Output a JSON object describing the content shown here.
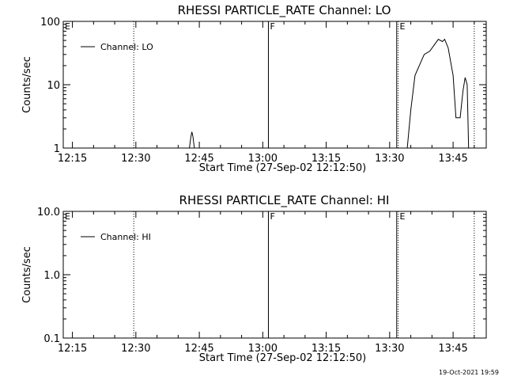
{
  "chart_data": [
    {
      "type": "line",
      "title": "RHESSI PARTICLE_RATE Channel: LO",
      "xlabel": "Start Time (27-Sep-02 12:12:50)",
      "ylabel": "Counts/sec",
      "yscale": "log",
      "ylim": [
        1,
        100
      ],
      "xlim": [
        "12:12:50",
        "13:52:50"
      ],
      "x_ticks": [
        "12:15",
        "12:30",
        "12:45",
        "13:00",
        "13:15",
        "13:30",
        "13:45"
      ],
      "y_ticks": [
        "1",
        "10",
        "100"
      ],
      "legend": {
        "placement": "top-left",
        "entries": [
          "Channel: LO"
        ]
      },
      "markers": [
        {
          "label": "E",
          "time": "12:12:50",
          "style": "solid"
        },
        {
          "label": "",
          "time": "12:29:30",
          "style": "dotted"
        },
        {
          "label": "F",
          "time": "13:01:20",
          "style": "solid"
        },
        {
          "label": "",
          "time": "13:31:40",
          "style": "solid"
        },
        {
          "label": "E",
          "time": "13:32:00",
          "style": "dotted"
        },
        {
          "label": "",
          "time": "13:50:00",
          "style": "dotted"
        }
      ],
      "series": [
        {
          "segments": [
            [
              {
                "t": "12:42:40",
                "v": 1
              },
              {
                "t": "12:43:00",
                "v": 1.5
              },
              {
                "t": "12:43:15",
                "v": 1.8
              },
              {
                "t": "12:43:30",
                "v": 1.5
              },
              {
                "t": "12:43:50",
                "v": 1
              }
            ],
            [
              {
                "t": "13:34:10",
                "v": 1
              },
              {
                "t": "13:35:00",
                "v": 4
              },
              {
                "t": "13:36:00",
                "v": 14
              },
              {
                "t": "13:37:00",
                "v": 20
              },
              {
                "t": "13:38:10",
                "v": 30
              },
              {
                "t": "13:39:30",
                "v": 34
              },
              {
                "t": "13:40:30",
                "v": 42
              },
              {
                "t": "13:41:30",
                "v": 52
              },
              {
                "t": "13:42:30",
                "v": 48
              },
              {
                "t": "13:43:00",
                "v": 52
              },
              {
                "t": "13:43:50",
                "v": 38
              },
              {
                "t": "13:45:00",
                "v": 14
              },
              {
                "t": "13:45:40",
                "v": 3
              },
              {
                "t": "13:46:40",
                "v": 3
              },
              {
                "t": "13:47:20",
                "v": 8
              },
              {
                "t": "13:47:50",
                "v": 13
              },
              {
                "t": "13:48:20",
                "v": 10
              },
              {
                "t": "13:48:40",
                "v": 1
              }
            ]
          ]
        }
      ]
    },
    {
      "type": "line",
      "title": "RHESSI PARTICLE_RATE Channel: HI",
      "xlabel": "Start Time (27-Sep-02 12:12:50)",
      "ylabel": "Counts/sec",
      "yscale": "log",
      "ylim": [
        0.1,
        10
      ],
      "xlim": [
        "12:12:50",
        "13:52:50"
      ],
      "x_ticks": [
        "12:15",
        "12:30",
        "12:45",
        "13:00",
        "13:15",
        "13:30",
        "13:45"
      ],
      "y_ticks": [
        "0.1",
        "1.0",
        "10.0"
      ],
      "legend": {
        "placement": "top-left",
        "entries": [
          "Channel: HI"
        ]
      },
      "markers": [
        {
          "label": "E",
          "time": "12:12:50",
          "style": "solid"
        },
        {
          "label": "",
          "time": "12:29:30",
          "style": "dotted"
        },
        {
          "label": "F",
          "time": "13:01:20",
          "style": "solid"
        },
        {
          "label": "",
          "time": "13:31:40",
          "style": "solid"
        },
        {
          "label": "E",
          "time": "13:32:00",
          "style": "dotted"
        },
        {
          "label": "",
          "time": "13:50:00",
          "style": "dotted"
        }
      ],
      "series": [
        {
          "segments": []
        }
      ]
    }
  ],
  "footer": {
    "timestamp": "19-Oct-2021 19:59"
  }
}
